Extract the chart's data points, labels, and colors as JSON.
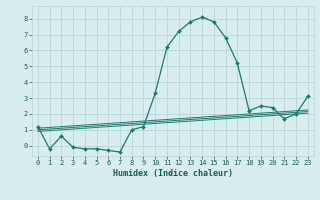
{
  "x": [
    0,
    1,
    2,
    3,
    4,
    5,
    6,
    7,
    8,
    9,
    10,
    11,
    12,
    13,
    14,
    15,
    16,
    17,
    18,
    19,
    20,
    21,
    22,
    23
  ],
  "y_main": [
    1.2,
    -0.2,
    0.6,
    -0.1,
    -0.2,
    -0.2,
    -0.3,
    -0.4,
    1.0,
    1.2,
    3.3,
    6.2,
    7.2,
    7.8,
    8.1,
    7.8,
    6.8,
    5.2,
    2.2,
    2.5,
    2.4,
    1.7,
    2.0,
    3.1
  ],
  "trend1": [
    1.0,
    1.05,
    1.1,
    1.15,
    1.2,
    1.25,
    1.3,
    1.35,
    1.4,
    1.45,
    1.5,
    1.55,
    1.6,
    1.65,
    1.7,
    1.75,
    1.8,
    1.85,
    1.9,
    1.95,
    2.0,
    2.05,
    2.1,
    2.15
  ],
  "trend2": [
    1.1,
    1.15,
    1.2,
    1.25,
    1.3,
    1.35,
    1.4,
    1.45,
    1.5,
    1.55,
    1.6,
    1.65,
    1.7,
    1.75,
    1.8,
    1.85,
    1.9,
    1.95,
    2.0,
    2.05,
    2.1,
    2.15,
    2.2,
    2.25
  ],
  "trend3": [
    0.9,
    0.95,
    1.0,
    1.05,
    1.1,
    1.15,
    1.2,
    1.25,
    1.3,
    1.35,
    1.4,
    1.45,
    1.5,
    1.55,
    1.6,
    1.65,
    1.7,
    1.75,
    1.8,
    1.85,
    1.9,
    1.95,
    2.0,
    2.05
  ],
  "line_color": "#1a7a6e",
  "background_color": "#d8eeee",
  "grid_color": "#b8d4d4",
  "xlabel": "Humidex (Indice chaleur)",
  "xlim": [
    -0.5,
    23.5
  ],
  "ylim": [
    -0.65,
    8.8
  ],
  "yticks": [
    0,
    1,
    2,
    3,
    4,
    5,
    6,
    7,
    8
  ],
  "xticks": [
    0,
    1,
    2,
    3,
    4,
    5,
    6,
    7,
    8,
    9,
    10,
    11,
    12,
    13,
    14,
    15,
    16,
    17,
    18,
    19,
    20,
    21,
    22,
    23
  ],
  "font_color": "#1a5a5a",
  "figsize": [
    3.2,
    2.0
  ],
  "dpi": 100
}
